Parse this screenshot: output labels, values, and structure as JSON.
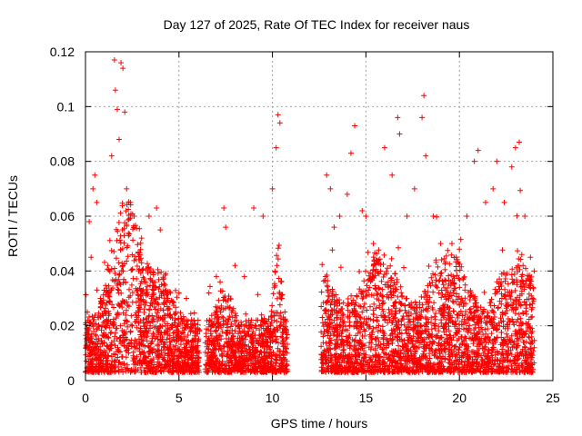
{
  "chart_data": {
    "type": "scatter",
    "title": "Day 127 of 2025, Rate Of TEC Index for receiver naus",
    "xlabel": "GPS time / hours",
    "ylabel": "ROTI / TECUs",
    "xlim": [
      0,
      25
    ],
    "ylim": [
      0,
      0.12
    ],
    "x_ticks": [
      0,
      5,
      10,
      15,
      20,
      25
    ],
    "x_tick_labels": [
      "0",
      "5",
      "10",
      "15",
      "20",
      "25"
    ],
    "y_ticks": [
      0,
      0.02,
      0.04,
      0.06,
      0.08,
      0.1,
      0.12
    ],
    "y_tick_labels": [
      "0",
      "0.02",
      "0.04",
      "0.06",
      "0.08",
      "0.1",
      "0.12"
    ],
    "grid": true,
    "marker": "plus",
    "color": "#ff0000",
    "data_coverage_hours": [
      [
        0,
        6.1
      ],
      [
        6.4,
        10.8
      ],
      [
        12.6,
        24.0
      ]
    ],
    "series": [
      {
        "points": [
          [
            0.1,
            0.025
          ],
          [
            0.2,
            0.058
          ],
          [
            0.3,
            0.045
          ],
          [
            0.4,
            0.07
          ],
          [
            0.5,
            0.075
          ],
          [
            0.6,
            0.065
          ],
          [
            0.8,
            0.03
          ],
          [
            1.0,
            0.033
          ],
          [
            1.2,
            0.042
          ],
          [
            1.4,
            0.082
          ],
          [
            1.55,
            0.117
          ],
          [
            1.6,
            0.106
          ],
          [
            1.7,
            0.099
          ],
          [
            1.8,
            0.088
          ],
          [
            1.9,
            0.116
          ],
          [
            2.0,
            0.114
          ],
          [
            2.1,
            0.098
          ],
          [
            2.2,
            0.07
          ],
          [
            2.4,
            0.065
          ],
          [
            2.6,
            0.06
          ],
          [
            3.0,
            0.052
          ],
          [
            3.4,
            0.06
          ],
          [
            3.8,
            0.063
          ],
          [
            4.0,
            0.055
          ],
          [
            4.4,
            0.03
          ],
          [
            5.0,
            0.032
          ],
          [
            5.4,
            0.03
          ],
          [
            5.8,
            0.022
          ],
          [
            6.6,
            0.032
          ],
          [
            7.0,
            0.038
          ],
          [
            7.2,
            0.036
          ],
          [
            7.4,
            0.063
          ],
          [
            7.5,
            0.056
          ],
          [
            8.0,
            0.042
          ],
          [
            8.5,
            0.038
          ],
          [
            9.0,
            0.063
          ],
          [
            9.5,
            0.06
          ],
          [
            10.0,
            0.07
          ],
          [
            10.2,
            0.085
          ],
          [
            10.3,
            0.097
          ],
          [
            10.4,
            0.094
          ],
          [
            10.5,
            0.03
          ],
          [
            12.9,
            0.075
          ],
          [
            13.1,
            0.07
          ],
          [
            13.3,
            0.056
          ],
          [
            13.6,
            0.06
          ],
          [
            14.0,
            0.068
          ],
          [
            14.2,
            0.083
          ],
          [
            14.4,
            0.093
          ],
          [
            14.8,
            0.062
          ],
          [
            15.0,
            0.06
          ],
          [
            15.4,
            0.05
          ],
          [
            16.0,
            0.085
          ],
          [
            16.4,
            0.075
          ],
          [
            16.7,
            0.096
          ],
          [
            16.8,
            0.09
          ],
          [
            17.2,
            0.06
          ],
          [
            17.6,
            0.07
          ],
          [
            18.0,
            0.096
          ],
          [
            18.1,
            0.104
          ],
          [
            18.2,
            0.082
          ],
          [
            18.6,
            0.06
          ],
          [
            19.0,
            0.05
          ],
          [
            19.6,
            0.05
          ],
          [
            20.0,
            0.048
          ],
          [
            20.4,
            0.06
          ],
          [
            20.8,
            0.08
          ],
          [
            21.0,
            0.084
          ],
          [
            21.4,
            0.065
          ],
          [
            21.8,
            0.07
          ],
          [
            22.0,
            0.08
          ],
          [
            22.4,
            0.065
          ],
          [
            22.8,
            0.078
          ],
          [
            23.0,
            0.085
          ],
          [
            23.2,
            0.087
          ],
          [
            23.5,
            0.06
          ],
          [
            23.8,
            0.045
          ],
          [
            24.0,
            0.04
          ]
        ]
      }
    ]
  }
}
